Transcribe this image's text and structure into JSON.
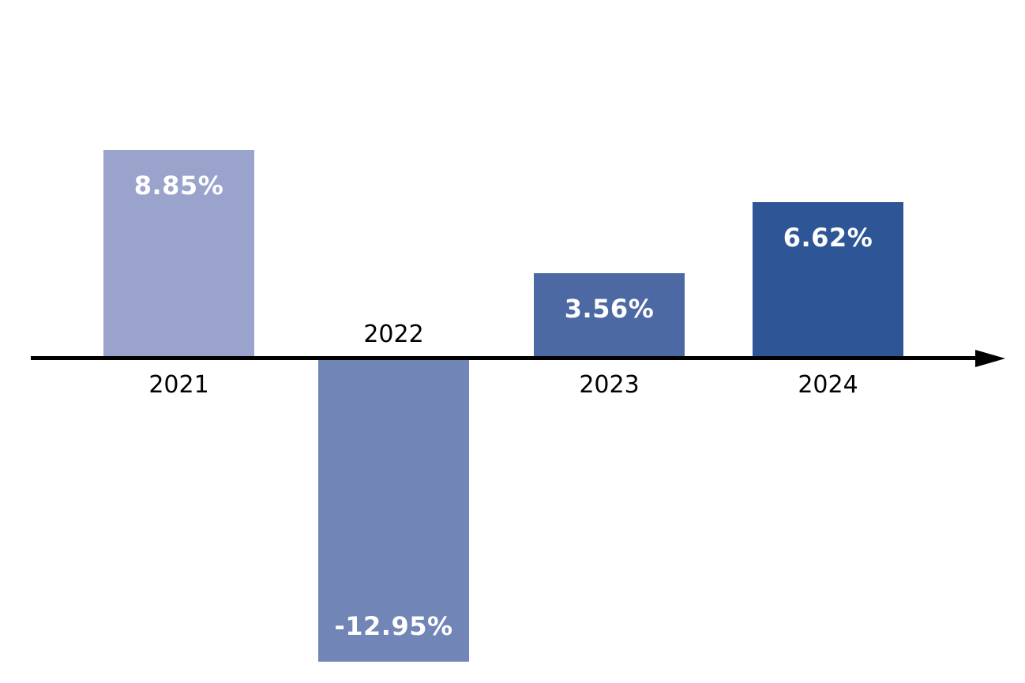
{
  "chart_data": {
    "type": "bar",
    "title": "",
    "xlabel": "",
    "ylabel": "",
    "categories": [
      "2021",
      "2022",
      "2023",
      "2024"
    ],
    "values": [
      8.85,
      -12.95,
      3.56,
      6.62
    ],
    "value_labels": [
      "8.85%",
      "-12.95%",
      "3.56%",
      "6.62%"
    ],
    "bar_colors": [
      "#9aa3cb",
      "#7285b7",
      "#4d69a3",
      "#2e5596"
    ],
    "value_label_color": "#ffffff",
    "category_label_color": "#000000",
    "axis_color": "#000000",
    "background_color": "#ffffff",
    "legend": false,
    "grid": false,
    "baseline": 0,
    "ylim": [
      -13.5,
      9.5
    ],
    "value_label_position": "inside-end",
    "category_label_position": "opposite-side-of-bar-at-axis"
  }
}
